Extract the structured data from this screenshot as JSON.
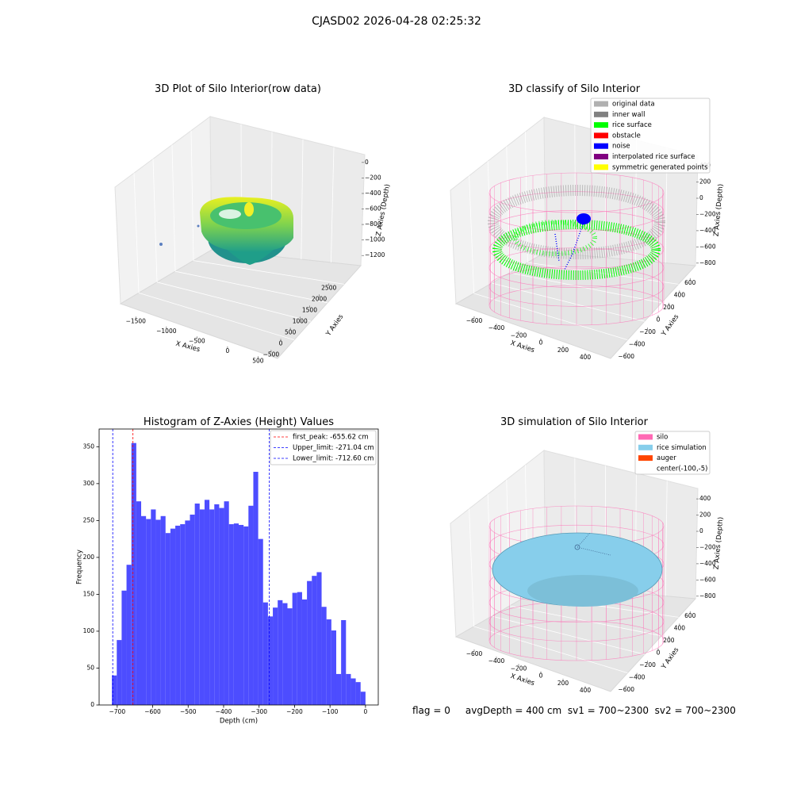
{
  "title": "CJASD02 2026-04-28 02:25:32",
  "footer": "flag = 0     avgDepth = 400 cm  sv1 = 700~2300  sv2 = 700~2300",
  "chart_data": [
    {
      "type": "surface3d",
      "title": "3D Plot of Silo Interior(row data)",
      "xlabel": "X Axies",
      "ylabel": "Y Axies",
      "zlabel": "Z Axies (Depth)",
      "xlim": [
        -1750,
        650
      ],
      "ylim": [
        -700,
        2800
      ],
      "zlim": [
        -1300,
        80
      ],
      "xticks": [
        {
          "value": -1500,
          "label": "−1500"
        },
        {
          "value": -1000,
          "label": "−1000"
        },
        {
          "value": -500,
          "label": "−500"
        },
        0,
        500
      ],
      "yticks": [
        {
          "value": -500,
          "label": "−500"
        },
        0,
        500,
        1000,
        1500,
        2000,
        2500
      ],
      "zticks": [
        0,
        {
          "value": -200,
          "label": "−200"
        },
        {
          "value": -400,
          "label": "−400"
        },
        {
          "value": -600,
          "label": "−600"
        },
        {
          "value": -800,
          "label": "−800"
        },
        {
          "value": -1000,
          "label": "−1000"
        },
        {
          "value": -1200,
          "label": "−1200"
        }
      ]
    },
    {
      "type": "scatter3d",
      "title": "3D classify of Silo Interior",
      "xlabel": "X Axies",
      "ylabel": "Y Axies",
      "zlabel": "Z Axies (Depth)",
      "xlim": [
        -750,
        550
      ],
      "ylim": [
        -700,
        700
      ],
      "zlim": [
        -900,
        450
      ],
      "xticks": [
        {
          "value": -600,
          "label": "−600"
        },
        {
          "value": -400,
          "label": "−400"
        },
        {
          "value": -200,
          "label": "−200"
        },
        0,
        200,
        400
      ],
      "yticks": [
        {
          "value": -600,
          "label": "−600"
        },
        {
          "value": -400,
          "label": "−400"
        },
        {
          "value": -200,
          "label": "−200"
        },
        0,
        200,
        400,
        600
      ],
      "zticks": [
        400,
        200,
        0,
        {
          "value": -200,
          "label": "−200"
        },
        {
          "value": -400,
          "label": "−400"
        },
        {
          "value": -600,
          "label": "−600"
        },
        {
          "value": -800,
          "label": "−800"
        }
      ],
      "legend": [
        {
          "name": "original data",
          "color": "#b0b0b0"
        },
        {
          "name": "inner wall",
          "color": "#808080"
        },
        {
          "name": "rice surface",
          "color": "#00ff00"
        },
        {
          "name": "obstacle",
          "color": "#ff0000"
        },
        {
          "name": "noise",
          "color": "#0000ff"
        },
        {
          "name": "interpolated rice surface",
          "color": "#800080"
        },
        {
          "name": "symmetric generated points",
          "color": "#ffff00"
        }
      ]
    },
    {
      "type": "histogram",
      "title": "Histogram of Z-Axies (Height) Values",
      "xlabel": "Depth (cm)",
      "ylabel": "Frequency",
      "color": "#4d4dff",
      "bins": [
        -715,
        -701.25,
        -687.5,
        -673.75,
        -660,
        -646.25,
        -632.5,
        -618.75,
        -605,
        -591.25,
        -577.5,
        -563.75,
        -550,
        -536.25,
        -522.5,
        -508.75,
        -495,
        -481.25,
        -467.5,
        -453.75,
        -440,
        -426.25,
        -412.5,
        -398.75,
        -385,
        -371.25,
        -357.5,
        -343.75,
        -330,
        -316.25,
        -302.5,
        -288.75,
        -275,
        -261.25,
        -247.5,
        -233.75,
        -220,
        -206.25,
        -192.5,
        -178.75,
        -165,
        -151.25,
        -137.5,
        -123.75,
        -110,
        -96.25,
        -82.5,
        -68.75,
        -55,
        -41.25,
        -27.5,
        -13.75,
        0
      ],
      "counts": [
        40,
        88,
        155,
        190,
        355,
        276,
        256,
        252,
        265,
        251,
        256,
        233,
        239,
        243,
        245,
        250,
        258,
        273,
        265,
        278,
        265,
        272,
        267,
        276,
        245,
        246,
        244,
        242,
        270,
        316,
        225,
        139,
        120,
        132,
        142,
        138,
        131,
        152,
        153,
        143,
        168,
        175,
        180,
        133,
        116,
        101,
        42,
        115,
        42,
        36,
        31,
        18
      ],
      "xlim": [
        -751,
        36
      ],
      "ylim": [
        0,
        374
      ],
      "xticks": [
        {
          "value": -700,
          "label": "−700"
        },
        {
          "value": -600,
          "label": "−600"
        },
        {
          "value": -500,
          "label": "−500"
        },
        {
          "value": -400,
          "label": "−400"
        },
        {
          "value": -300,
          "label": "−300"
        },
        {
          "value": -200,
          "label": "−200"
        },
        {
          "value": -100,
          "label": "−100"
        },
        0
      ],
      "yticks": [
        0,
        50,
        100,
        150,
        200,
        250,
        300,
        350
      ],
      "lines": [
        {
          "label": "first_peak: -655.62 cm",
          "value": -655.62,
          "color": "#ff0000"
        },
        {
          "label": "Upper_limit: -271.04 cm",
          "value": -271.04,
          "color": "#0000ff"
        },
        {
          "label": "Lower_limit: -712.60 cm",
          "value": -712.6,
          "color": "#0000ff"
        }
      ]
    },
    {
      "type": "surface3d",
      "title": "3D simulation of Silo Interior",
      "xlabel": "X Axies",
      "ylabel": "Y Axies",
      "zlabel": "Z Axies (Depth)",
      "xlim": [
        -750,
        550
      ],
      "ylim": [
        -700,
        700
      ],
      "zlim": [
        -900,
        450
      ],
      "xticks": [
        {
          "value": -600,
          "label": "−600"
        },
        {
          "value": -400,
          "label": "−400"
        },
        {
          "value": -200,
          "label": "−200"
        },
        0,
        200,
        400
      ],
      "yticks": [
        {
          "value": -600,
          "label": "−600"
        },
        {
          "value": -400,
          "label": "−400"
        },
        {
          "value": -200,
          "label": "−200"
        },
        0,
        200,
        400,
        600
      ],
      "zticks": [
        400,
        200,
        0,
        {
          "value": -200,
          "label": "−200"
        },
        {
          "value": -400,
          "label": "−400"
        },
        {
          "value": -600,
          "label": "−600"
        },
        {
          "value": -800,
          "label": "−800"
        }
      ],
      "legend": [
        {
          "name": "silo",
          "color": "#ff69b4"
        },
        {
          "name": "rice simulation",
          "color": "#87ceeb"
        },
        {
          "name": "auger",
          "color": "#ff4500"
        },
        {
          "name": "center(-100,-5)"
        }
      ]
    }
  ]
}
